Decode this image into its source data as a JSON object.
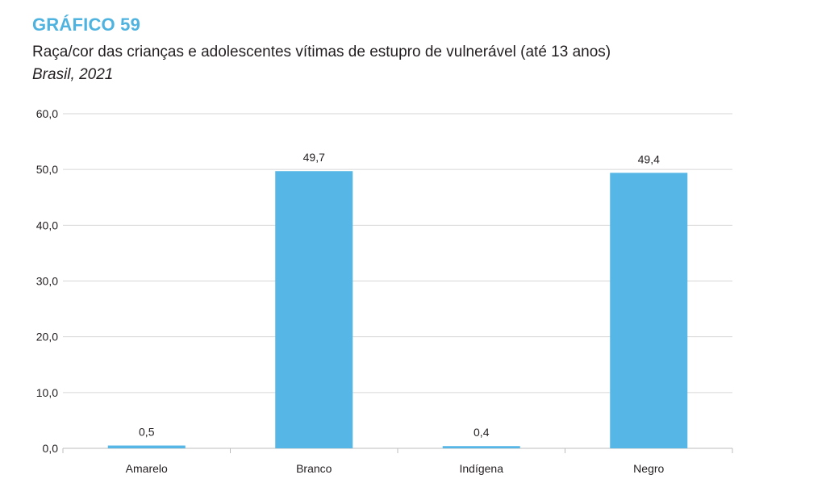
{
  "header": {
    "label": "GRÁFICO 59",
    "title": "Raça/cor das crianças e adolescentes vítimas de estupro de vulnerável (até 13 anos)",
    "subtitle": "Brasil, 2021"
  },
  "colors": {
    "accent": "#4fb3e0",
    "bar": "#56b6e6",
    "grid": "#d6d6d6",
    "text": "#231f20"
  },
  "chart_data": {
    "type": "bar",
    "title": "Raça/cor das crianças e adolescentes vítimas de estupro de vulnerável (até 13 anos)",
    "subtitle": "Brasil, 2021",
    "xlabel": "",
    "ylabel": "",
    "categories": [
      "Amarelo",
      "Branco",
      "Indígena",
      "Negro"
    ],
    "values": [
      0.5,
      49.7,
      0.4,
      49.4
    ],
    "value_labels": [
      "0,5",
      "49,7",
      "0,4",
      "49,4"
    ],
    "ylim": [
      0,
      60
    ],
    "yticks": [
      0,
      10,
      20,
      30,
      40,
      50,
      60
    ],
    "ytick_labels": [
      "0,0",
      "10,0",
      "20,0",
      "30,0",
      "40,0",
      "50,0",
      "60,0"
    ],
    "grid": true,
    "legend": "none"
  }
}
